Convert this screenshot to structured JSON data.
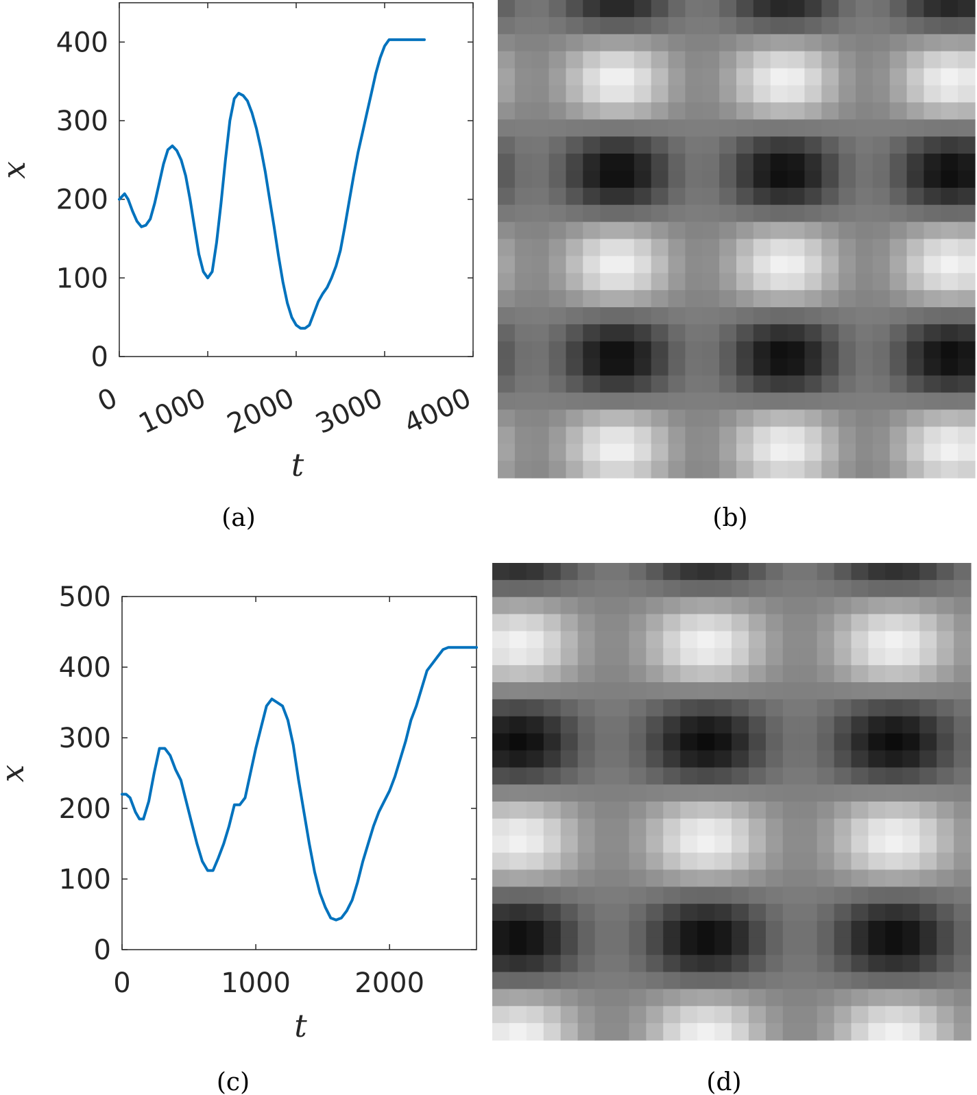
{
  "chart_data": [
    {
      "panel": "a",
      "caption": "(a)",
      "type": "line",
      "xlabel": "t",
      "ylabel": "x",
      "xlim": [
        0,
        4000
      ],
      "ylim": [
        0,
        450
      ],
      "xticks": [
        0,
        1000,
        2000,
        3000,
        4000
      ],
      "yticks": [
        0,
        100,
        200,
        300,
        400
      ],
      "xtick_labels": [
        "0",
        "1000",
        "2000",
        "3000",
        "4000"
      ],
      "ytick_labels": [
        "0",
        "100",
        "200",
        "300",
        "400"
      ],
      "xtick_rotation": "rotated",
      "grid": false,
      "line_color": "#0072BD",
      "series": [
        {
          "x": [
            0,
            60,
            100,
            150,
            200,
            250,
            300,
            350,
            400,
            450,
            500,
            550,
            600,
            650,
            700,
            750,
            800,
            850,
            900,
            950,
            1000,
            1050,
            1100,
            1150,
            1200,
            1250,
            1300,
            1350,
            1400,
            1450,
            1500,
            1550,
            1600,
            1650,
            1700,
            1750,
            1800,
            1850,
            1900,
            1950,
            2000,
            2050,
            2100,
            2150,
            2200,
            2250,
            2300,
            2350,
            2400,
            2450,
            2500,
            2550,
            2600,
            2650,
            2700,
            2750,
            2800,
            2850,
            2900,
            2950,
            3000,
            3050,
            3100,
            3150,
            3200,
            3250,
            3300,
            3350,
            3400,
            3450
          ],
          "y": [
            200,
            207,
            200,
            185,
            172,
            165,
            167,
            175,
            195,
            220,
            245,
            263,
            268,
            262,
            250,
            230,
            200,
            165,
            130,
            108,
            100,
            108,
            145,
            195,
            250,
            300,
            328,
            335,
            332,
            325,
            310,
            290,
            265,
            235,
            200,
            165,
            128,
            95,
            68,
            50,
            40,
            36,
            36,
            40,
            55,
            70,
            80,
            88,
            100,
            115,
            135,
            165,
            198,
            230,
            260,
            285,
            310,
            335,
            360,
            380,
            395,
            403,
            403,
            403,
            403,
            403,
            403,
            403,
            403,
            403
          ]
        }
      ]
    },
    {
      "panel": "b",
      "caption": "(b)",
      "type": "heatmap",
      "colormap": "grayscale",
      "rows": 28,
      "cols": 28,
      "matrix_rule": "value(r,c) = 0.5 + 0.5 * cos(2*pi*(r+1.2)/10.8) * (0.55 + 0.45*cos(2*pi*(c-6.5)/9.8))",
      "value_range": [
        0,
        1
      ]
    },
    {
      "panel": "c",
      "caption": "(c)",
      "type": "line",
      "xlabel": "t",
      "ylabel": "x",
      "xlim": [
        0,
        2650
      ],
      "ylim": [
        0,
        500
      ],
      "xticks": [
        0,
        1000,
        2000
      ],
      "yticks": [
        0,
        100,
        200,
        300,
        400,
        500
      ],
      "xtick_labels": [
        "0",
        "1000",
        "2000"
      ],
      "ytick_labels": [
        "0",
        "100",
        "200",
        "300",
        "400",
        "500"
      ],
      "grid": false,
      "line_color": "#0072BD",
      "series": [
        {
          "x": [
            0,
            30,
            60,
            100,
            130,
            160,
            200,
            240,
            280,
            320,
            360,
            400,
            440,
            480,
            520,
            560,
            600,
            640,
            680,
            720,
            760,
            800,
            840,
            880,
            920,
            960,
            1000,
            1040,
            1080,
            1120,
            1160,
            1200,
            1240,
            1280,
            1320,
            1360,
            1400,
            1440,
            1480,
            1520,
            1560,
            1600,
            1640,
            1680,
            1720,
            1760,
            1800,
            1840,
            1880,
            1920,
            1960,
            2000,
            2040,
            2080,
            2120,
            2160,
            2200,
            2240,
            2280,
            2320,
            2360,
            2400,
            2440,
            2480,
            2520,
            2560,
            2600,
            2650
          ],
          "y": [
            220,
            220,
            215,
            195,
            185,
            185,
            210,
            250,
            285,
            285,
            275,
            255,
            240,
            210,
            180,
            150,
            125,
            112,
            112,
            130,
            150,
            175,
            205,
            205,
            215,
            250,
            285,
            315,
            345,
            355,
            350,
            345,
            325,
            290,
            240,
            195,
            150,
            110,
            80,
            60,
            45,
            42,
            45,
            55,
            70,
            95,
            125,
            150,
            175,
            195,
            210,
            225,
            245,
            270,
            295,
            325,
            345,
            370,
            395,
            405,
            415,
            425,
            428,
            428,
            428,
            428,
            428,
            428
          ]
        }
      ]
    },
    {
      "panel": "d",
      "caption": "(d)",
      "type": "heatmap",
      "colormap": "grayscale",
      "rows": 28,
      "cols": 28,
      "matrix_rule": "value(r,c) = 0.5 + 0.5 * cos(2*pi*(r+1.5)/11.5) * (0.55 + 0.45*cos(2*pi*(c-12)/11))",
      "value_range": [
        0,
        1
      ]
    }
  ]
}
